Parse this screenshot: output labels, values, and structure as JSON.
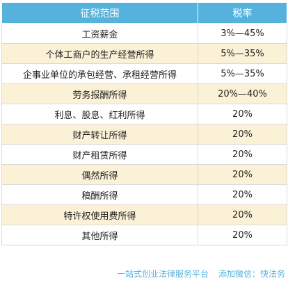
{
  "header": {
    "scope_label": "征税范围",
    "rate_label": "税率"
  },
  "rows": [
    {
      "scope": "工资薪金",
      "rate": "3%—45%"
    },
    {
      "scope": "个体工商户的生产经营所得",
      "rate": "5%—35%"
    },
    {
      "scope": "企事业单位的承包经营、承租经营所得",
      "rate": "5%—35%"
    },
    {
      "scope": "劳务报酬所得",
      "rate": "20%—40%"
    },
    {
      "scope": "利息、股息、红利所得",
      "rate": "20%"
    },
    {
      "scope": "财产转让所得",
      "rate": "20%"
    },
    {
      "scope": "财产租赁所得",
      "rate": "20%"
    },
    {
      "scope": "偶然所得",
      "rate": "20%"
    },
    {
      "scope": "稿酬所得",
      "rate": "20%"
    },
    {
      "scope": "特许权使用费所得",
      "rate": "20%"
    },
    {
      "scope": "其他所得",
      "rate": "20%"
    }
  ],
  "footer": {
    "platform": "一站式创业法律服务平台",
    "wechat": "添加微信：快法务"
  },
  "colors": {
    "header_bg": "#55b2dd",
    "stripe_bg": "#fbf1d7",
    "footer_text": "#55b2dd"
  }
}
